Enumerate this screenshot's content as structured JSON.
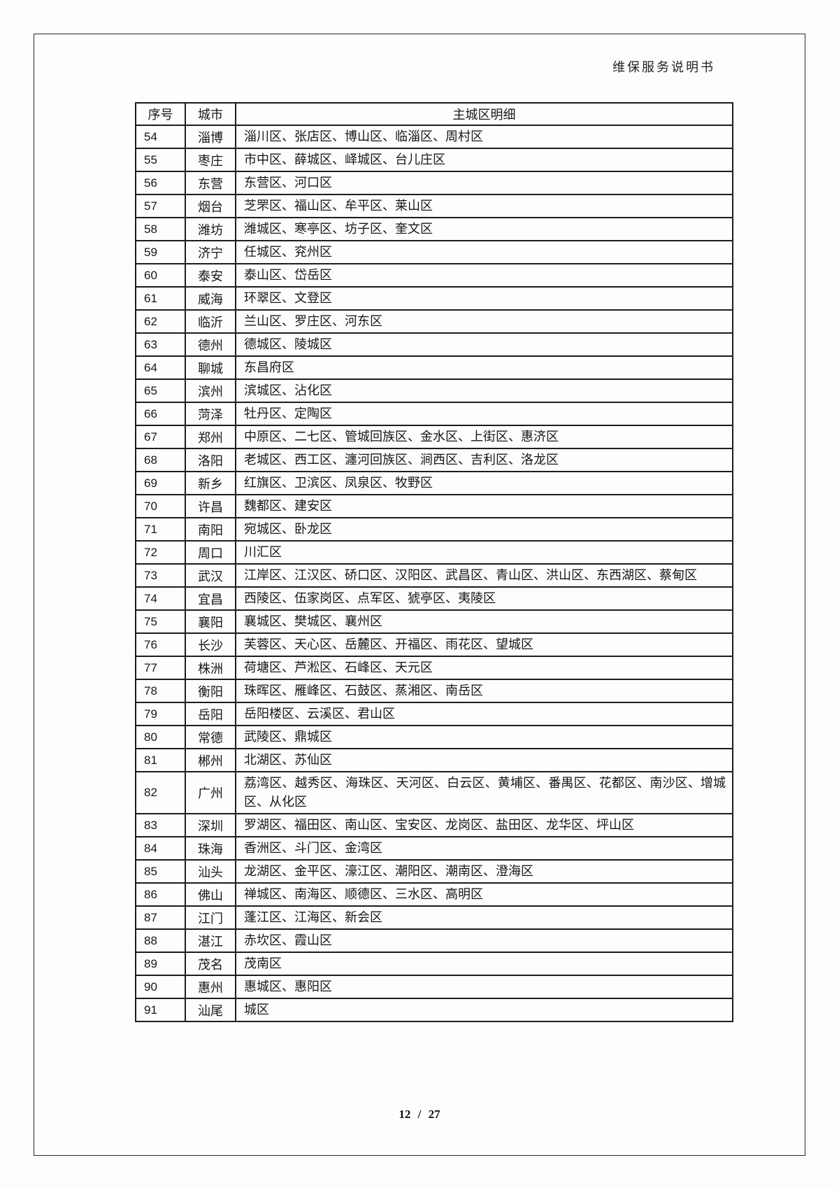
{
  "header": {
    "title": "维保服务说明书"
  },
  "table": {
    "columns": [
      "序号",
      "城市",
      "主城区明细"
    ],
    "rows": [
      {
        "no": "54",
        "city": "淄博",
        "districts": "淄川区、张店区、博山区、临淄区、周村区"
      },
      {
        "no": "55",
        "city": "枣庄",
        "districts": "市中区、薛城区、峄城区、台儿庄区"
      },
      {
        "no": "56",
        "city": "东营",
        "districts": "东营区、河口区"
      },
      {
        "no": "57",
        "city": "烟台",
        "districts": "芝罘区、福山区、牟平区、莱山区"
      },
      {
        "no": "58",
        "city": "潍坊",
        "districts": "潍城区、寒亭区、坊子区、奎文区"
      },
      {
        "no": "59",
        "city": "济宁",
        "districts": "任城区、兖州区"
      },
      {
        "no": "60",
        "city": "泰安",
        "districts": "泰山区、岱岳区"
      },
      {
        "no": "61",
        "city": "威海",
        "districts": "环翠区、文登区"
      },
      {
        "no": "62",
        "city": "临沂",
        "districts": "兰山区、罗庄区、河东区"
      },
      {
        "no": "63",
        "city": "德州",
        "districts": "德城区、陵城区"
      },
      {
        "no": "64",
        "city": "聊城",
        "districts": "东昌府区"
      },
      {
        "no": "65",
        "city": "滨州",
        "districts": "滨城区、沾化区"
      },
      {
        "no": "66",
        "city": "菏泽",
        "districts": "牡丹区、定陶区"
      },
      {
        "no": "67",
        "city": "郑州",
        "districts": "中原区、二七区、管城回族区、金水区、上街区、惠济区"
      },
      {
        "no": "68",
        "city": "洛阳",
        "districts": "老城区、西工区、瀍河回族区、涧西区、吉利区、洛龙区"
      },
      {
        "no": "69",
        "city": "新乡",
        "districts": "红旗区、卫滨区、凤泉区、牧野区"
      },
      {
        "no": "70",
        "city": "许昌",
        "districts": "魏都区、建安区"
      },
      {
        "no": "71",
        "city": "南阳",
        "districts": "宛城区、卧龙区"
      },
      {
        "no": "72",
        "city": "周口",
        "districts": "川汇区"
      },
      {
        "no": "73",
        "city": "武汉",
        "districts": "江岸区、江汉区、硚口区、汉阳区、武昌区、青山区、洪山区、东西湖区、蔡甸区"
      },
      {
        "no": "74",
        "city": "宜昌",
        "districts": "西陵区、伍家岗区、点军区、猇亭区、夷陵区"
      },
      {
        "no": "75",
        "city": "襄阳",
        "districts": "襄城区、樊城区、襄州区"
      },
      {
        "no": "76",
        "city": "长沙",
        "districts": "芙蓉区、天心区、岳麓区、开福区、雨花区、望城区"
      },
      {
        "no": "77",
        "city": "株洲",
        "districts": "荷塘区、芦淞区、石峰区、天元区"
      },
      {
        "no": "78",
        "city": "衡阳",
        "districts": "珠晖区、雁峰区、石鼓区、蒸湘区、南岳区"
      },
      {
        "no": "79",
        "city": "岳阳",
        "districts": "岳阳楼区、云溪区、君山区"
      },
      {
        "no": "80",
        "city": "常德",
        "districts": "武陵区、鼎城区"
      },
      {
        "no": "81",
        "city": "郴州",
        "districts": "北湖区、苏仙区"
      },
      {
        "no": "82",
        "city": "广州",
        "districts": "荔湾区、越秀区、海珠区、天河区、白云区、黄埔区、番禺区、花都区、南沙区、增城区、从化区"
      },
      {
        "no": "83",
        "city": "深圳",
        "districts": "罗湖区、福田区、南山区、宝安区、龙岗区、盐田区、龙华区、坪山区"
      },
      {
        "no": "84",
        "city": "珠海",
        "districts": "香洲区、斗门区、金湾区"
      },
      {
        "no": "85",
        "city": "汕头",
        "districts": "龙湖区、金平区、濠江区、潮阳区、潮南区、澄海区"
      },
      {
        "no": "86",
        "city": "佛山",
        "districts": "禅城区、南海区、顺德区、三水区、高明区"
      },
      {
        "no": "87",
        "city": "江门",
        "districts": "蓬江区、江海区、新会区"
      },
      {
        "no": "88",
        "city": "湛江",
        "districts": "赤坎区、霞山区"
      },
      {
        "no": "89",
        "city": "茂名",
        "districts": "茂南区"
      },
      {
        "no": "90",
        "city": "惠州",
        "districts": "惠城区、惠阳区"
      },
      {
        "no": "91",
        "city": "汕尾",
        "districts": "城区"
      }
    ]
  },
  "footer": {
    "page_number": "12 / 27"
  }
}
